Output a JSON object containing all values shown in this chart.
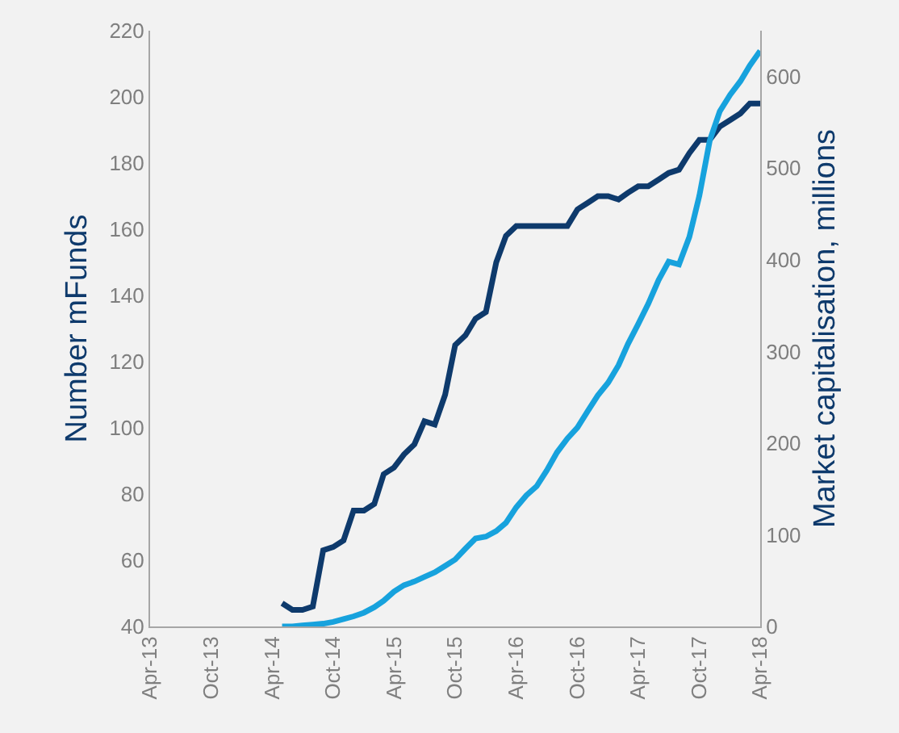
{
  "chart_data": {
    "type": "line",
    "ylabel": "Number mFunds",
    "y2label": "Market capitalisation, millions",
    "x": [
      "2014-05",
      "2014-06",
      "2014-07",
      "2014-08",
      "2014-09",
      "2014-10",
      "2014-11",
      "2014-12",
      "2015-01",
      "2015-02",
      "2015-03",
      "2015-04",
      "2015-05",
      "2015-06",
      "2015-07",
      "2015-08",
      "2015-09",
      "2015-10",
      "2015-11",
      "2015-12",
      "2016-01",
      "2016-02",
      "2016-03",
      "2016-04",
      "2016-05",
      "2016-06",
      "2016-07",
      "2016-08",
      "2016-09",
      "2016-10",
      "2016-11",
      "2016-12",
      "2017-01",
      "2017-02",
      "2017-03",
      "2017-04",
      "2017-05",
      "2017-06",
      "2017-07",
      "2017-08",
      "2017-09",
      "2017-10",
      "2017-11",
      "2017-12",
      "2018-01",
      "2018-02",
      "2018-03",
      "2018-04"
    ],
    "series": [
      {
        "color": "#0e3a6c",
        "values": [
          47,
          45,
          45,
          46,
          63,
          64,
          66,
          75,
          75,
          77,
          86,
          88,
          92,
          95,
          102,
          101,
          110,
          125,
          128,
          133,
          135,
          150,
          158,
          161,
          161,
          161,
          161,
          161,
          161,
          166,
          168,
          170,
          170,
          169,
          171,
          173,
          173,
          175,
          177,
          178,
          183,
          187,
          187,
          191,
          193,
          195,
          198,
          198
        ]
      },
      {
        "color": "#17a2dd",
        "axis": "y2",
        "values": [
          0,
          0,
          1,
          2,
          3,
          5,
          8,
          11,
          15,
          21,
          28,
          38,
          45,
          49,
          54,
          59,
          66,
          73,
          85,
          96,
          98,
          104,
          113,
          130,
          143,
          153,
          170,
          190,
          205,
          217,
          235,
          252,
          266,
          285,
          308,
          330,
          352,
          378,
          398,
          395,
          425,
          470,
          530,
          562,
          580,
          595,
          612,
          628
        ]
      }
    ],
    "xlim": [
      "2013-04",
      "2018-04"
    ],
    "xticks": [
      {
        "value": "2013-04",
        "label": "Apr-13"
      },
      {
        "value": "2013-10",
        "label": "Oct-13"
      },
      {
        "value": "2014-04",
        "label": "Apr-14"
      },
      {
        "value": "2014-10",
        "label": "Oct-14"
      },
      {
        "value": "2015-04",
        "label": "Apr-15"
      },
      {
        "value": "2015-10",
        "label": "Oct-15"
      },
      {
        "value": "2016-04",
        "label": "Apr-16"
      },
      {
        "value": "2016-10",
        "label": "Oct-16"
      },
      {
        "value": "2017-04",
        "label": "Apr-17"
      },
      {
        "value": "2017-10",
        "label": "Oct-17"
      },
      {
        "value": "2018-04",
        "label": "Apr-18"
      }
    ],
    "ylim": [
      40,
      220
    ],
    "yticks": [
      40,
      60,
      80,
      100,
      120,
      140,
      160,
      180,
      200,
      220
    ],
    "y2lim": [
      0,
      650
    ],
    "y2ticks": [
      0,
      100,
      200,
      300,
      400,
      500,
      600
    ]
  }
}
